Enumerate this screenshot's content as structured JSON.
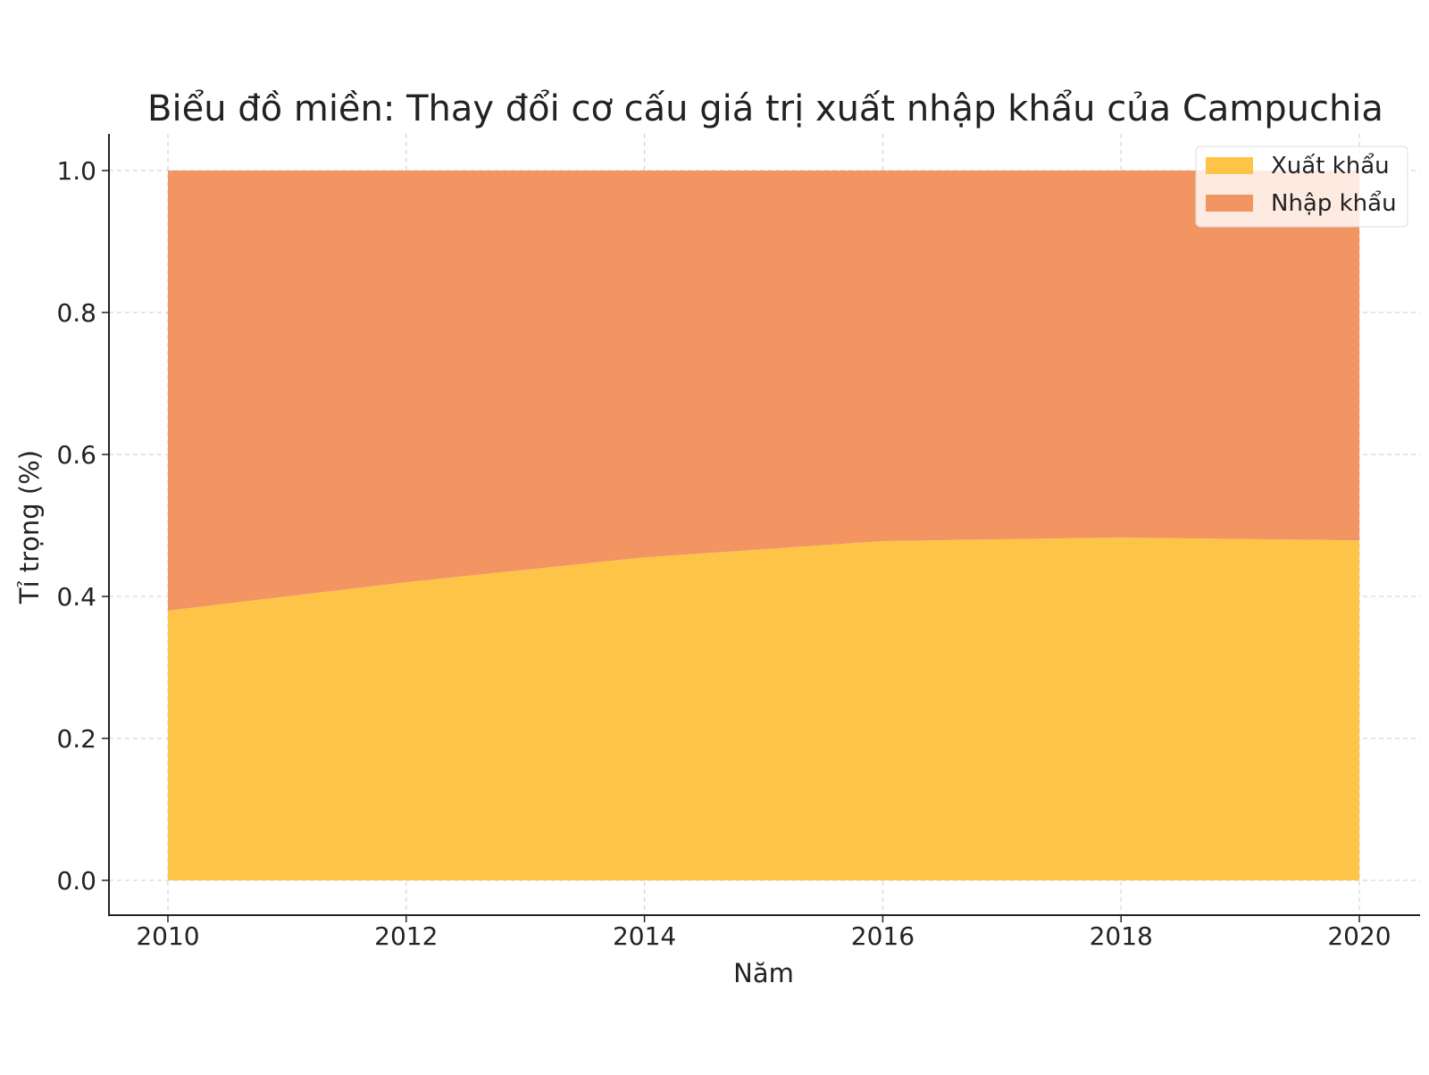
{
  "chart_data": {
    "type": "area",
    "stacked": true,
    "title": "Biểu đồ miền: Thay đổi cơ cấu giá trị xuất nhập khẩu của Campuchia",
    "xlabel": "Năm",
    "ylabel": "Tỉ trọng (%)",
    "x": [
      2010,
      2012,
      2014,
      2016,
      2018,
      2020
    ],
    "xticks": [
      "2010",
      "2012",
      "2014",
      "2016",
      "2018",
      "2020"
    ],
    "yticks": [
      "0.0",
      "0.2",
      "0.4",
      "0.6",
      "0.8",
      "1.0"
    ],
    "xlim": [
      2009.5,
      2020.5
    ],
    "ylim": [
      -0.05,
      1.05
    ],
    "grid": true,
    "legend_position": "top-right",
    "series": [
      {
        "name": "Xuất khẩu",
        "color": "#fdc448",
        "values": [
          0.38,
          0.42,
          0.455,
          0.478,
          0.483,
          0.479
        ]
      },
      {
        "name": "Nhập khẩu",
        "color": "#f39463",
        "values": [
          0.62,
          0.58,
          0.545,
          0.522,
          0.517,
          0.521
        ]
      }
    ]
  }
}
